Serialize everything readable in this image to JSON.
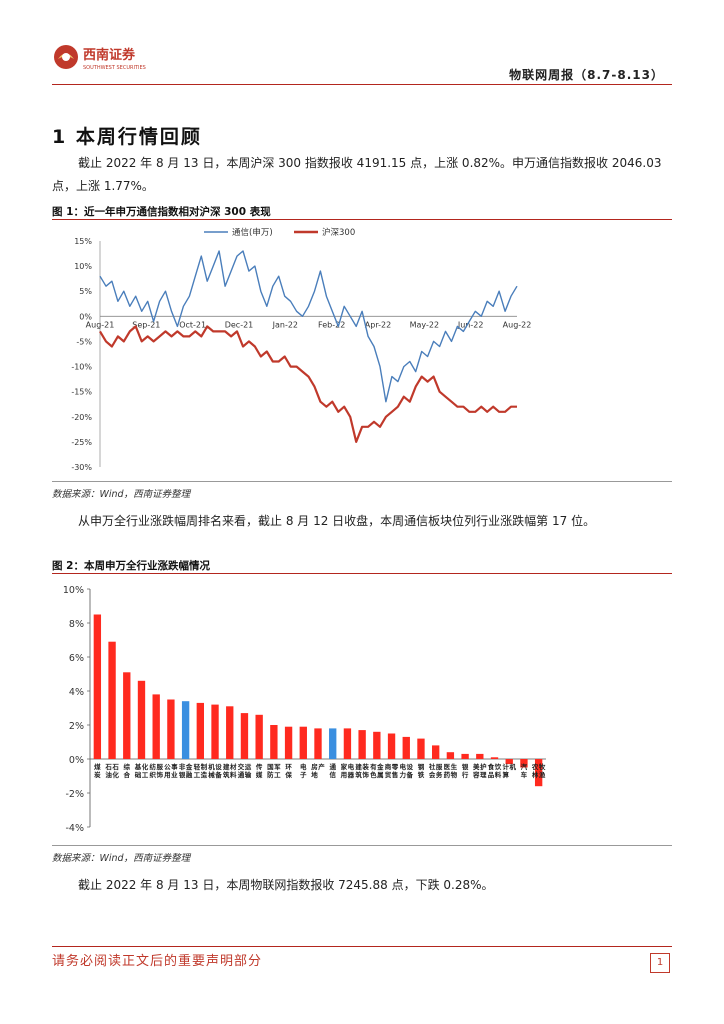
{
  "header": {
    "company_name": "西南证券",
    "company_name_en": "SOUTHWEST SECURITIES",
    "report_title": "物联网周报（8.7-8.13）",
    "brand_color": "#b3261e"
  },
  "section": {
    "number": "1",
    "title": "本周行情回顾"
  },
  "paragraphs": {
    "p1": "截止 2022 年 8 月 13 日，本周沪深 300 指数报收 4191.15 点，上涨 0.82%。申万通信指数报收 2046.03 点，上涨 1.77%。",
    "p2": "从申万全行业涨跌幅周排名来看，截止 8 月 12 日收盘，本周通信板块位列行业涨跌幅第 17 位。",
    "p3": "截止 2022 年 8 月 13 日，本周物联网指数报收 7245.88 点，下跌 0.28%。"
  },
  "figure1": {
    "title": "图 1：近一年申万通信指数相对沪深 300 表现",
    "source": "数据来源：Wind，西南证券整理"
  },
  "figure2": {
    "title": "图 2：本周申万全行业涨跌幅情况",
    "source": "数据来源：Wind，西南证券整理"
  },
  "chart_data": [
    {
      "type": "line",
      "title": "近一年申万通信指数相对沪深 300 表现",
      "x_ticks": [
        "Aug-21",
        "Sep-21",
        "Oct-21",
        "Dec-21",
        "Jan-22",
        "Feb-22",
        "Apr-22",
        "May-22",
        "Jun-22",
        "Aug-22"
      ],
      "y_ticks": [
        "15%",
        "10%",
        "5%",
        "0%",
        "-5%",
        "-10%",
        "-15%",
        "-20%",
        "-25%",
        "-30%"
      ],
      "ylim": [
        -30,
        15
      ],
      "legend": [
        "通信(申万)",
        "沪深300"
      ],
      "series": [
        {
          "name": "通信(申万)",
          "color": "#4a7ebb",
          "values": [
            8,
            6,
            7,
            3,
            5,
            2,
            4,
            1,
            3,
            -1,
            3,
            5,
            1,
            -2,
            2,
            4,
            8,
            12,
            7,
            10,
            13,
            6,
            9,
            12,
            13,
            9,
            10,
            5,
            2,
            6,
            8,
            4,
            3,
            1,
            0,
            2,
            5,
            9,
            4,
            1,
            -2,
            2,
            0,
            -2,
            1,
            -4,
            -6,
            -10,
            -17,
            -12,
            -13,
            -10,
            -9,
            -11,
            -7,
            -8,
            -5,
            -6,
            -3,
            -5,
            -2,
            -3,
            -1,
            1,
            0,
            3,
            2,
            5,
            1,
            4,
            6
          ]
        },
        {
          "name": "沪深300",
          "color": "#c0392b",
          "values": [
            -3,
            -5,
            -6,
            -4,
            -5,
            -3,
            -2,
            -5,
            -4,
            -5,
            -4,
            -3,
            -4,
            -3,
            -4,
            -4,
            -3,
            -4,
            -2,
            -3,
            -3,
            -3,
            -4,
            -3,
            -6,
            -5,
            -6,
            -8,
            -7,
            -9,
            -9,
            -8,
            -10,
            -10,
            -11,
            -12,
            -14,
            -17,
            -18,
            -17,
            -19,
            -18,
            -20,
            -25,
            -22,
            -22,
            -21,
            -22,
            -20,
            -19,
            -18,
            -16,
            -17,
            -14,
            -12,
            -13,
            -12,
            -15,
            -16,
            -17,
            -18,
            -18,
            -19,
            -19,
            -18,
            -19,
            -18,
            -19,
            -19,
            -18,
            -18
          ]
        }
      ]
    },
    {
      "type": "bar",
      "title": "本周申万全行业涨跌幅情况",
      "y_ticks": [
        "10%",
        "8%",
        "6%",
        "4%",
        "2%",
        "0%",
        "-2%",
        "-4%"
      ],
      "ylim": [
        -4,
        10
      ],
      "categories": [
        "煤炭",
        "石油石化",
        "综合",
        "基础化工",
        "纺织服饰",
        "公用事业",
        "非银金融",
        "轻工制造",
        "机械设备",
        "建筑材料",
        "交通运输",
        "传媒",
        "国防军工",
        "环保",
        "电子",
        "房地产",
        "通信",
        "家用电器",
        "建筑装饰",
        "有色金属",
        "商贸零售",
        "电力设备",
        "钢铁",
        "社会服务",
        "医药生物",
        "银行",
        "美容护理",
        "食品饮料",
        "计算机",
        "汽车",
        "农林牧渔"
      ],
      "values": [
        8.5,
        6.9,
        5.1,
        4.6,
        3.8,
        3.5,
        3.4,
        3.3,
        3.2,
        3.1,
        2.7,
        2.6,
        2.0,
        1.9,
        1.9,
        1.8,
        1.8,
        1.8,
        1.7,
        1.6,
        1.5,
        1.3,
        1.2,
        0.8,
        0.4,
        0.3,
        0.3,
        0.1,
        -0.3,
        -0.5,
        -1.6
      ],
      "colors": {
        "default": "#ff2a1f",
        "highlight": "#3a8fe0"
      },
      "highlight": [
        "非银金融",
        "通信"
      ]
    }
  ],
  "footer": {
    "disclaimer": "请务必阅读正文后的重要声明部分",
    "page": "1"
  }
}
